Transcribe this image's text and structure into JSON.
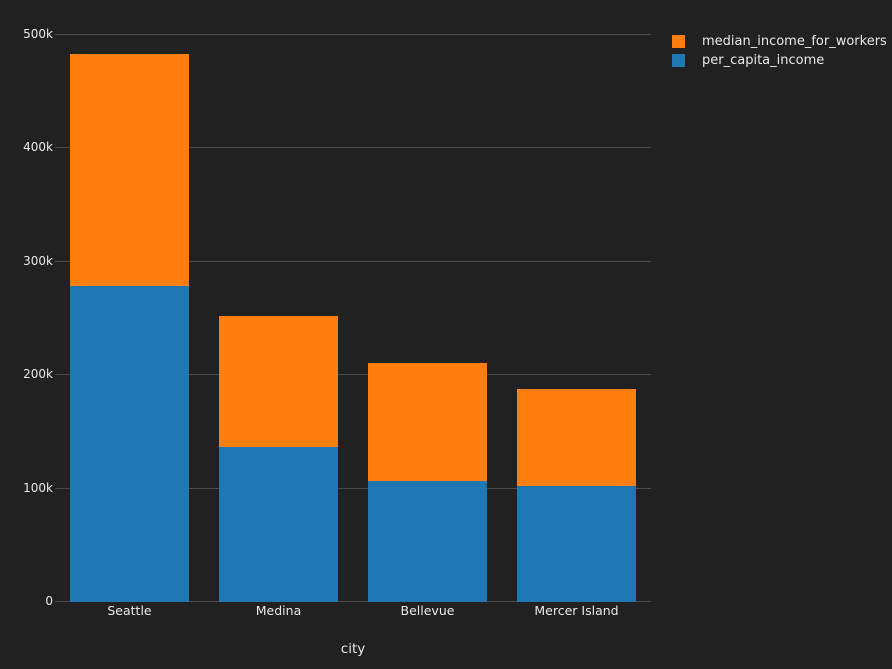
{
  "theme": {
    "background": "#212121",
    "gridline": "#4a4a4a",
    "text": "#e8e8e8"
  },
  "chart_data": {
    "type": "bar",
    "stacked": true,
    "title": "",
    "xlabel": "city",
    "ylabel": "",
    "categories": [
      "Seattle",
      "Medina",
      "Bellevue",
      "Mercer Island"
    ],
    "series": [
      {
        "name": "median_income_for_workers",
        "color": "#ff7f0e",
        "values": [
          204000,
          115000,
          104000,
          86000
        ]
      },
      {
        "name": "per_capita_income",
        "color": "#1f77b4",
        "values": [
          279000,
          137000,
          107000,
          102000
        ]
      }
    ],
    "ylim": [
      0,
      500000
    ],
    "yticks": [
      {
        "value": 0,
        "label": "0"
      },
      {
        "value": 100000,
        "label": "100k"
      },
      {
        "value": 200000,
        "label": "200k"
      },
      {
        "value": 300000,
        "label": "300k"
      },
      {
        "value": 400000,
        "label": "400k"
      },
      {
        "value": 500000,
        "label": "500k"
      }
    ],
    "grid": true,
    "legend_position": "top-right"
  }
}
